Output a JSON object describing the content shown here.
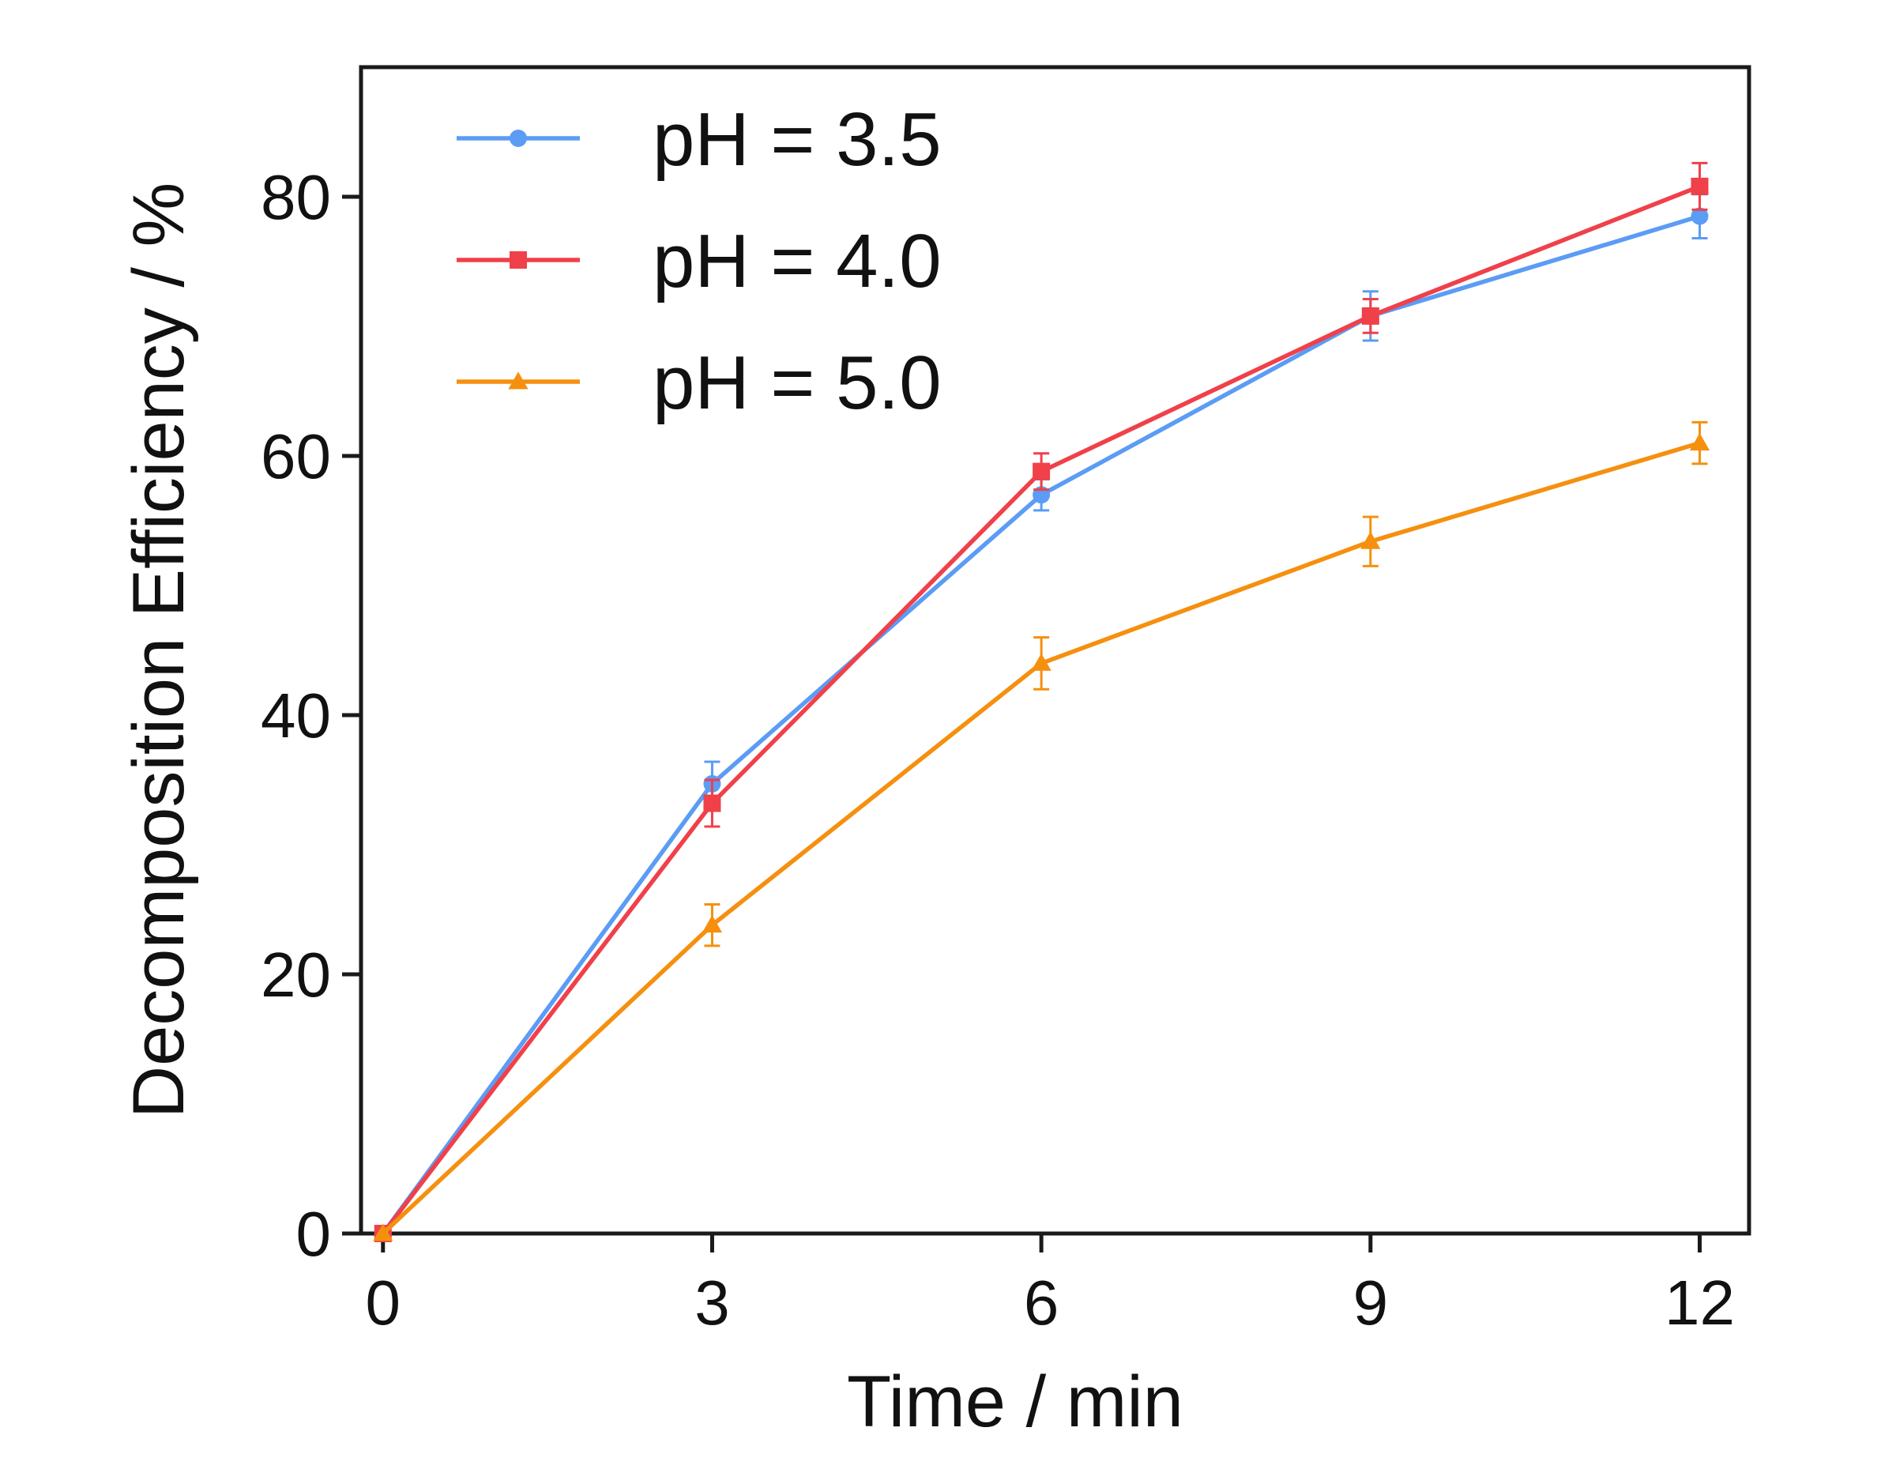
{
  "chart_data": {
    "type": "line",
    "title": "",
    "xlabel": "Time / min",
    "ylabel": "Decomposition Efficiency / %",
    "x": [
      0,
      3,
      6,
      9,
      12
    ],
    "xlim": [
      -0.2,
      12.45
    ],
    "ylim": [
      0,
      90
    ],
    "xticks": [
      "0",
      "3",
      "6",
      "9",
      "12"
    ],
    "yticks": [
      "0",
      "20",
      "40",
      "60",
      "80"
    ],
    "grid": false,
    "legend_position": "top-left",
    "series": [
      {
        "name": "pH = 3.5",
        "color": "#5b9cf5",
        "marker": "circle",
        "values": [
          0,
          34.7,
          57.0,
          70.8,
          78.5
        ],
        "errors": [
          0,
          1.7,
          1.2,
          1.9,
          1.7
        ]
      },
      {
        "name": "pH = 4.0",
        "color": "#f0404a",
        "marker": "square",
        "values": [
          0,
          33.2,
          58.8,
          70.8,
          80.8
        ],
        "errors": [
          0,
          1.8,
          1.4,
          1.3,
          1.8
        ]
      },
      {
        "name": "pH = 5.0",
        "color": "#f5900f",
        "marker": "triangle",
        "values": [
          0,
          23.8,
          44.0,
          53.4,
          61.0
        ],
        "errors": [
          0,
          1.6,
          2.0,
          1.9,
          1.6
        ]
      }
    ]
  }
}
